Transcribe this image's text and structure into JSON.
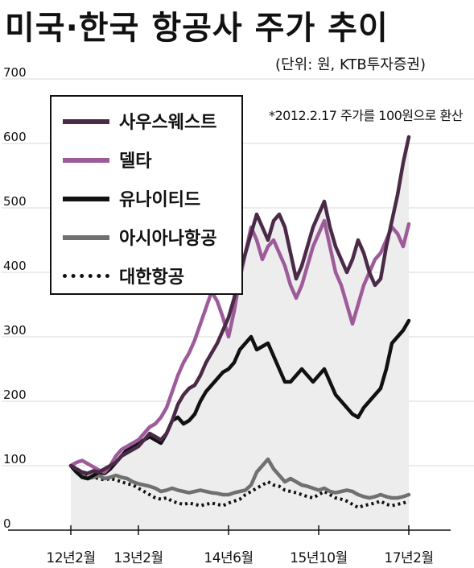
{
  "title": "미국·한국 항공사 주가 추이",
  "unit": "(단위: 원, KTB투자증권)",
  "note": "*2012.2.17 주가를 100원으로 환산",
  "colors": {
    "southwest": "#4a2a47",
    "delta": "#9e5b9a",
    "united": "#111111",
    "asiana": "#707070",
    "koreanair": "#111111",
    "area": "#ededed"
  },
  "chart_data": {
    "type": "line",
    "title": "미국·한국 항공사 주가 추이",
    "xlabel": "",
    "ylabel": "",
    "ylim": [
      0,
      700
    ],
    "yticks": [
      0,
      100,
      200,
      300,
      400,
      500,
      600,
      700
    ],
    "xticks": [
      "12년2월",
      "13년2월",
      "14년6월",
      "15년10월",
      "17년2월"
    ],
    "xlim": [
      0,
      60
    ],
    "xtick_positions": [
      0,
      12,
      28,
      44,
      60
    ],
    "grid": true,
    "legend_position": "top-left",
    "series": [
      {
        "name": "사우스웨스트",
        "key": "southwest",
        "style": "solid",
        "x": [
          0,
          1,
          2,
          3,
          4,
          5,
          6,
          7,
          8,
          9,
          10,
          11,
          12,
          13,
          14,
          15,
          16,
          17,
          18,
          19,
          20,
          21,
          22,
          23,
          24,
          25,
          26,
          27,
          28,
          29,
          30,
          31,
          32,
          33,
          34,
          35,
          36,
          37,
          38,
          39,
          40,
          41,
          42,
          43,
          44,
          45,
          46,
          47,
          48,
          49,
          50,
          51,
          52,
          53,
          54,
          55,
          56,
          57,
          58,
          59,
          60
        ],
        "values": [
          100,
          95,
          90,
          88,
          92,
          90,
          95,
          100,
          105,
          115,
          120,
          125,
          130,
          140,
          150,
          145,
          140,
          150,
          170,
          195,
          210,
          220,
          225,
          240,
          260,
          275,
          290,
          310,
          330,
          360,
          400,
          430,
          460,
          490,
          470,
          450,
          480,
          490,
          470,
          430,
          390,
          410,
          440,
          470,
          490,
          510,
          470,
          440,
          420,
          400,
          420,
          450,
          430,
          400,
          380,
          390,
          440,
          480,
          520,
          570,
          610
        ]
      },
      {
        "name": "델타",
        "key": "delta",
        "style": "solid",
        "x": [
          0,
          1,
          2,
          3,
          4,
          5,
          6,
          7,
          8,
          9,
          10,
          11,
          12,
          13,
          14,
          15,
          16,
          17,
          18,
          19,
          20,
          21,
          22,
          23,
          24,
          25,
          26,
          27,
          28,
          29,
          30,
          31,
          32,
          33,
          34,
          35,
          36,
          37,
          38,
          39,
          40,
          41,
          42,
          43,
          44,
          45,
          46,
          47,
          48,
          49,
          50,
          51,
          52,
          53,
          54,
          55,
          56,
          57,
          58,
          59,
          60
        ],
        "values": [
          100,
          105,
          108,
          103,
          98,
          93,
          90,
          100,
          115,
          125,
          130,
          135,
          140,
          150,
          160,
          165,
          175,
          190,
          215,
          240,
          260,
          275,
          295,
          320,
          345,
          370,
          355,
          330,
          300,
          340,
          390,
          430,
          470,
          450,
          420,
          440,
          450,
          430,
          410,
          380,
          360,
          380,
          410,
          440,
          460,
          480,
          440,
          400,
          380,
          350,
          320,
          350,
          380,
          400,
          420,
          430,
          450,
          470,
          460,
          440,
          475
        ]
      },
      {
        "name": "유나이티드",
        "key": "united",
        "style": "solid",
        "x": [
          0,
          1,
          2,
          3,
          4,
          5,
          6,
          7,
          8,
          9,
          10,
          11,
          12,
          13,
          14,
          15,
          16,
          17,
          18,
          19,
          20,
          21,
          22,
          23,
          24,
          25,
          26,
          27,
          28,
          29,
          30,
          31,
          32,
          33,
          34,
          35,
          36,
          37,
          38,
          39,
          40,
          41,
          42,
          43,
          44,
          45,
          46,
          47,
          48,
          49,
          50,
          51,
          52,
          53,
          54,
          55,
          56,
          57,
          58,
          59,
          60
        ],
        "values": [
          100,
          90,
          82,
          80,
          85,
          90,
          88,
          95,
          105,
          115,
          125,
          130,
          135,
          140,
          145,
          140,
          135,
          150,
          170,
          175,
          165,
          170,
          180,
          200,
          215,
          225,
          235,
          245,
          250,
          260,
          280,
          290,
          300,
          280,
          285,
          290,
          270,
          250,
          230,
          230,
          240,
          250,
          240,
          230,
          240,
          250,
          230,
          210,
          200,
          190,
          180,
          175,
          190,
          200,
          210,
          220,
          250,
          290,
          300,
          310,
          325
        ]
      },
      {
        "name": "아시아나항공",
        "key": "asiana",
        "style": "solid",
        "x": [
          0,
          1,
          2,
          3,
          4,
          5,
          6,
          7,
          8,
          9,
          10,
          11,
          12,
          13,
          14,
          15,
          16,
          17,
          18,
          19,
          20,
          21,
          22,
          23,
          24,
          25,
          26,
          27,
          28,
          29,
          30,
          31,
          32,
          33,
          34,
          35,
          36,
          37,
          38,
          39,
          40,
          41,
          42,
          43,
          44,
          45,
          46,
          47,
          48,
          49,
          50,
          51,
          52,
          53,
          54,
          55,
          56,
          57,
          58,
          59,
          60
        ],
        "values": [
          100,
          90,
          85,
          80,
          82,
          85,
          80,
          82,
          85,
          82,
          80,
          75,
          72,
          70,
          68,
          65,
          60,
          62,
          65,
          62,
          60,
          58,
          60,
          62,
          60,
          58,
          57,
          55,
          55,
          58,
          60,
          62,
          70,
          90,
          100,
          110,
          95,
          85,
          75,
          80,
          75,
          70,
          68,
          65,
          62,
          65,
          60,
          58,
          60,
          62,
          60,
          55,
          52,
          50,
          52,
          55,
          52,
          50,
          50,
          52,
          55
        ]
      },
      {
        "name": "대한항공",
        "key": "koreanair",
        "style": "dotted",
        "x": [
          0,
          1,
          2,
          3,
          4,
          5,
          6,
          7,
          8,
          9,
          10,
          11,
          12,
          13,
          14,
          15,
          16,
          17,
          18,
          19,
          20,
          21,
          22,
          23,
          24,
          25,
          26,
          27,
          28,
          29,
          30,
          31,
          32,
          33,
          34,
          35,
          36,
          37,
          38,
          39,
          40,
          41,
          42,
          43,
          44,
          45,
          46,
          47,
          48,
          49,
          50,
          51,
          52,
          53,
          54,
          55,
          56,
          57,
          58,
          59,
          60
        ],
        "values": [
          100,
          92,
          88,
          85,
          82,
          80,
          78,
          80,
          78,
          75,
          72,
          70,
          65,
          60,
          55,
          50,
          48,
          50,
          45,
          42,
          40,
          42,
          40,
          38,
          40,
          42,
          40,
          38,
          42,
          45,
          48,
          55,
          60,
          65,
          70,
          75,
          70,
          68,
          62,
          60,
          58,
          55,
          52,
          50,
          55,
          60,
          55,
          50,
          48,
          45,
          40,
          35,
          38,
          40,
          42,
          45,
          40,
          38,
          40,
          42,
          45
        ]
      }
    ]
  }
}
